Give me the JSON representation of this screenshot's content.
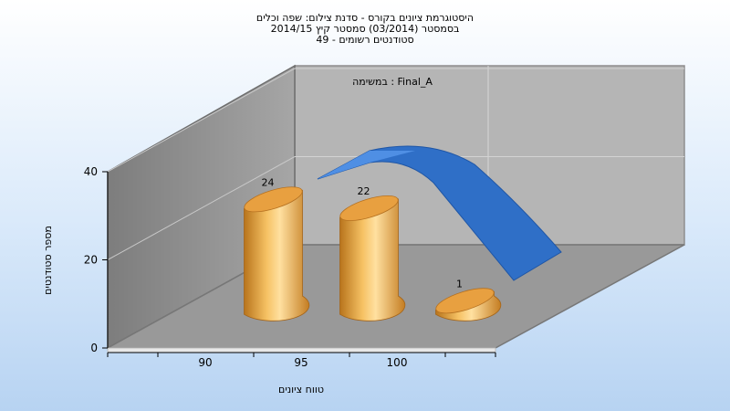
{
  "chart_data": {
    "type": "bar",
    "title": "היסטוגרמת ציונים בקורס - סדנת צילום: שפה וכלים",
    "subtitle_lines": [
      "בסמסטר  (03/2014)  סמסטר קיץ 2014/15",
      "סטודנטים רשומים - 49"
    ],
    "annotation": "במשימה : Final_A",
    "xlabel": "טווח ציונים",
    "ylabel": "מספר סטודנטים",
    "x_ticks": [
      "90",
      "95",
      "100"
    ],
    "y_ticks": [
      "0",
      "20",
      "40"
    ],
    "ylim": [
      0,
      40
    ],
    "categories": [
      "90",
      "95",
      "100"
    ],
    "values": [
      24,
      22,
      1
    ],
    "data_labels": [
      "24",
      "22",
      "1"
    ],
    "bar_color": "#e8a83e",
    "curve_color": "#2f6fc7",
    "grid": true,
    "view": "3d"
  }
}
